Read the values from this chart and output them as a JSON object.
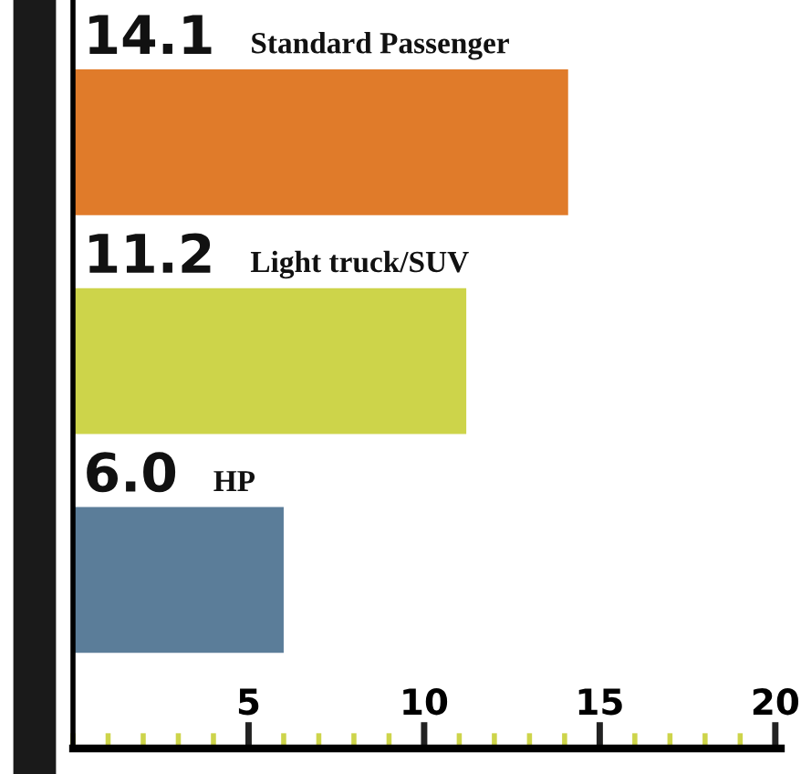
{
  "chart_data": {
    "type": "bar",
    "orientation": "horizontal",
    "categories": [
      "Standard Passenger",
      "Light truck/SUV",
      "HP"
    ],
    "values": [
      14.1,
      11.2,
      6.0
    ],
    "colors": [
      "#e07b2a",
      "#cdd44a",
      "#5b7d99"
    ],
    "value_labels": [
      "14.1",
      "11.2",
      "6.0"
    ],
    "xlim": [
      0,
      20.16
    ],
    "xticks": [
      {
        "value": 0,
        "label": null
      },
      {
        "value": 1,
        "label": null
      },
      {
        "value": 2,
        "label": null
      },
      {
        "value": 3,
        "label": null
      },
      {
        "value": 4,
        "label": null
      },
      5,
      {
        "value": 6,
        "label": null
      },
      {
        "value": 7,
        "label": null
      },
      {
        "value": 8,
        "label": null
      },
      {
        "value": 9,
        "label": null
      },
      10,
      {
        "value": 11,
        "label": null
      },
      {
        "value": 12,
        "label": null
      },
      {
        "value": 13,
        "label": null
      },
      {
        "value": 14,
        "label": null
      },
      15,
      {
        "value": 16,
        "label": null
      },
      {
        "value": 17,
        "label": null
      },
      {
        "value": 18,
        "label": null
      },
      {
        "value": 19,
        "label": null
      },
      20
    ],
    "grid": false,
    "legend": false
  }
}
